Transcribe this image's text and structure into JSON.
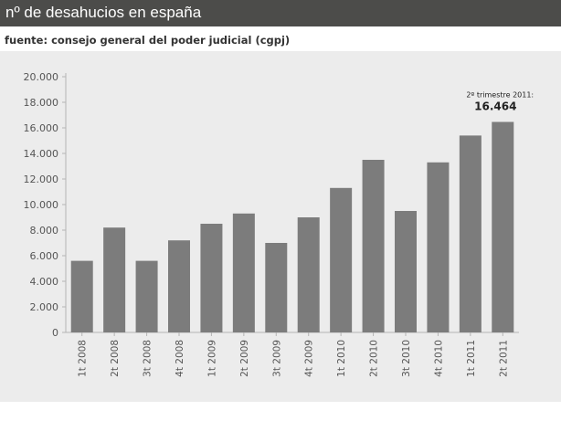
{
  "header": {
    "title": "nº de desahucios en españa"
  },
  "source": "fuente: consejo general del poder judicial (cgpj)",
  "chart_data": {
    "type": "bar",
    "title": "",
    "xlabel": "",
    "ylabel": "",
    "ylim": [
      0,
      20000
    ],
    "yticks": [
      0,
      2000,
      4000,
      6000,
      8000,
      10000,
      12000,
      14000,
      16000,
      18000,
      20000
    ],
    "ytick_labels": [
      "0",
      "2.000",
      "4.000",
      "6.000",
      "8.000",
      "10.000",
      "12.000",
      "14.000",
      "16.000",
      "18.000",
      "20.000"
    ],
    "categories": [
      "1t 2008",
      "2t 2008",
      "3t 2008",
      "4t 2008",
      "1t 2009",
      "2t 2009",
      "3t 2009",
      "4t 2009",
      "1t 2010",
      "2t 2010",
      "3t 2010",
      "4t 2010",
      "1t 2011",
      "2t 2011"
    ],
    "values": [
      5600,
      8200,
      5600,
      7200,
      8500,
      9300,
      7000,
      9000,
      11300,
      13500,
      9500,
      13300,
      15400,
      16464
    ],
    "bar_color": "#7c7c7c",
    "annotation": {
      "label": "2º trimestre 2011:",
      "value": "16.464",
      "category": "2t 2011"
    },
    "grid": false
  }
}
